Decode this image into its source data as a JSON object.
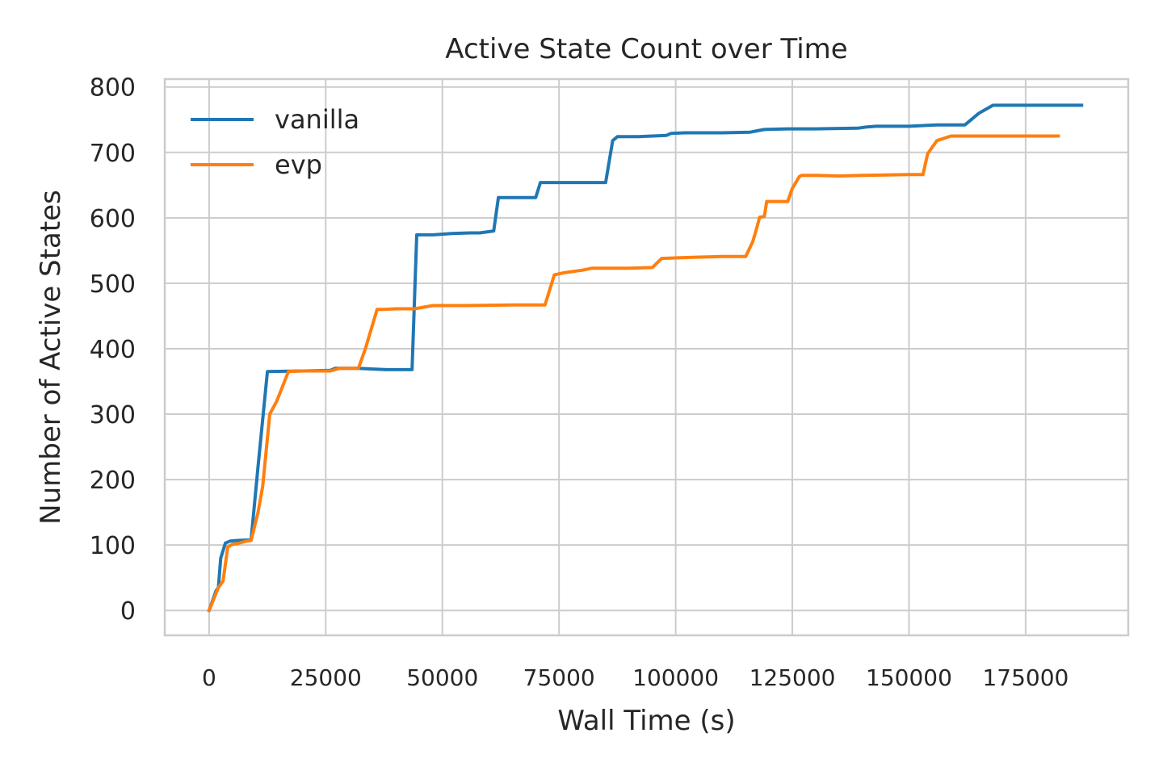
{
  "chart_data": {
    "type": "line",
    "title": "Active State Count over Time",
    "xlabel": "Wall Time (s)",
    "ylabel": "Number of Active States",
    "xlim": [
      -9500,
      197000
    ],
    "ylim": [
      -38,
      812
    ],
    "xticks": [
      0,
      25000,
      50000,
      75000,
      100000,
      125000,
      150000,
      175000
    ],
    "xtick_labels": [
      "0",
      "25000",
      "50000",
      "75000",
      "100000",
      "125000",
      "150000",
      "175000"
    ],
    "yticks": [
      0,
      100,
      200,
      300,
      400,
      500,
      600,
      700,
      800
    ],
    "ytick_labels": [
      "0",
      "100",
      "200",
      "300",
      "400",
      "500",
      "600",
      "700",
      "800"
    ],
    "grid": true,
    "legend": "upper left",
    "series": [
      {
        "name": "vanilla",
        "color": "#1f77b4",
        "x": [
          0,
          1500,
          2000,
          2500,
          3500,
          4500,
          6000,
          9000,
          10500,
          12500,
          20000,
          26000,
          27000,
          32000,
          35000,
          38000,
          43000,
          43500,
          44500,
          48000,
          52000,
          56000,
          58000,
          61000,
          62000,
          67000,
          70000,
          71000,
          75000,
          80000,
          84500,
          85000,
          86500,
          87500,
          92000,
          98000,
          99000,
          102000,
          110000,
          116000,
          117500,
          119000,
          124000,
          130000,
          139000,
          140000,
          141000,
          143000,
          150000,
          156000,
          161000,
          162000,
          165000,
          168000,
          172000,
          187000
        ],
        "y": [
          0,
          30,
          35,
          80,
          103,
          106,
          107,
          108,
          220,
          365,
          366,
          367,
          370,
          370,
          369,
          368,
          368,
          368,
          574,
          574,
          576,
          577,
          577,
          580,
          631,
          631,
          631,
          654,
          654,
          654,
          654,
          654,
          718,
          724,
          724,
          726,
          729,
          730,
          730,
          731,
          733,
          735,
          736,
          736,
          737,
          738,
          739,
          740,
          740,
          742,
          742,
          742,
          760,
          772,
          772,
          772
        ]
      },
      {
        "name": "evp",
        "color": "#ff7f0e",
        "x": [
          0,
          2000,
          3000,
          4000,
          5000,
          6000,
          8000,
          9000,
          10500,
          11500,
          13000,
          14500,
          17000,
          20000,
          25000,
          26000,
          28000,
          32000,
          33500,
          36000,
          37500,
          40000,
          44000,
          48000,
          55000,
          65000,
          72000,
          74000,
          76000,
          80000,
          82000,
          90000,
          95000,
          97000,
          101000,
          105000,
          110000,
          115000,
          116500,
          117000,
          118000,
          119000,
          119500,
          122000,
          124000,
          125000,
          126500,
          127000,
          130000,
          135000,
          140000,
          150000,
          153000,
          154000,
          156000,
          159000,
          163000,
          170000,
          182000
        ],
        "y": [
          0,
          35,
          45,
          97,
          101,
          102,
          106,
          107,
          150,
          190,
          300,
          320,
          365,
          366,
          366,
          366,
          370,
          370,
          400,
          460,
          460,
          461,
          461,
          466,
          466,
          467,
          467,
          513,
          516,
          520,
          523,
          523,
          524,
          538,
          539,
          540,
          541,
          541,
          563,
          575,
          601,
          602,
          625,
          625,
          625,
          645,
          663,
          665,
          665,
          664,
          665,
          666,
          666,
          698,
          718,
          725,
          725,
          725,
          725
        ]
      }
    ]
  }
}
